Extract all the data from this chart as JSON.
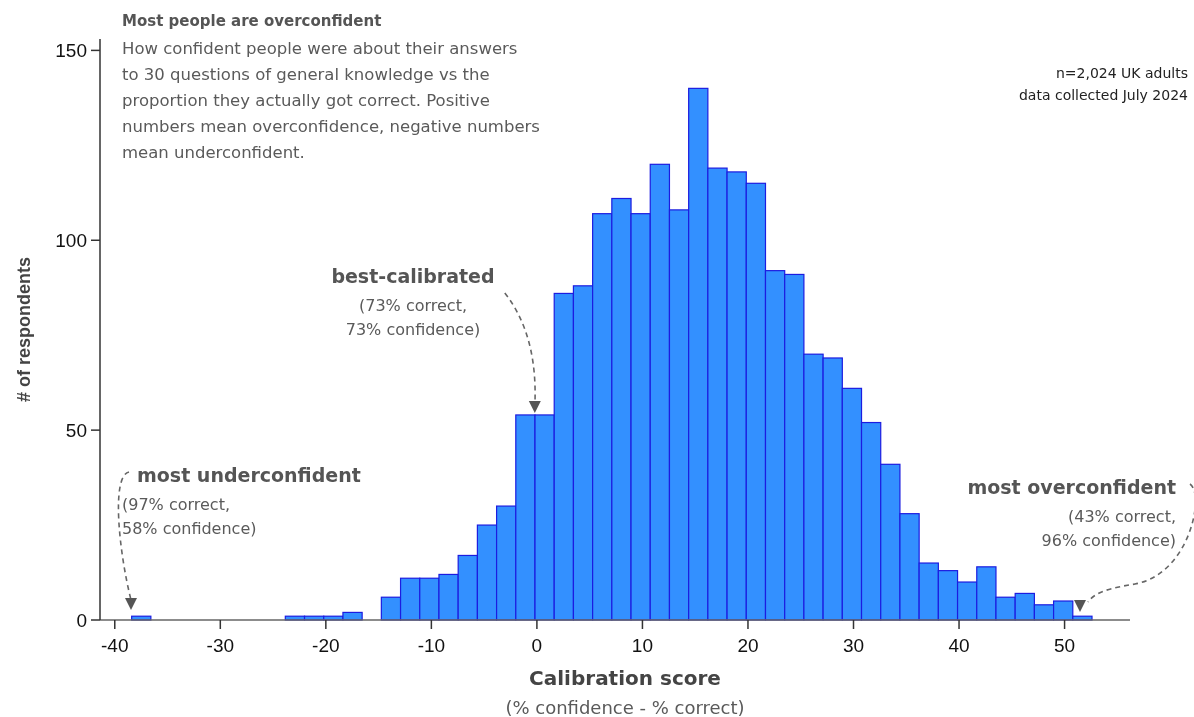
{
  "chart_data": {
    "type": "histogram",
    "title": "Most people are overconfident",
    "subtitle": "How confident people were about their answers to 30 questions of general knowledge vs the proportion they actually got correct. Positive numbers mean overconfidence, negative numbers mean underconfident.",
    "xlabel": "Calibration score\n(% confidence - % correct)",
    "ylabel": "# of respondents",
    "bins": [
      -38.4,
      -36.58,
      -34.76,
      -32.94,
      -31.12,
      -29.3,
      -27.48,
      -25.66,
      -23.84,
      -22.02,
      -20.2,
      -18.38,
      -16.56,
      -14.74,
      -12.92,
      -11.1,
      -9.28,
      -7.46,
      -5.64,
      -3.82,
      -2,
      -0.18,
      1.64,
      3.46,
      5.28,
      7.1,
      8.92,
      10.74,
      12.56,
      14.38,
      16.2,
      18.02,
      19.84,
      21.66,
      23.48,
      25.3,
      27.12,
      28.94,
      30.76,
      32.58,
      34.4,
      36.22,
      38.04,
      39.86,
      41.68,
      43.5,
      45.32,
      47.14,
      48.96,
      50.78,
      52.6
    ],
    "values": [
      1,
      0,
      0,
      0,
      0,
      0,
      0,
      0,
      1,
      1,
      1,
      2,
      0,
      6,
      11,
      11,
      12,
      17,
      25,
      30,
      54,
      54,
      86,
      88,
      107,
      111,
      107,
      120,
      108,
      140,
      119,
      118,
      115,
      92,
      91,
      70,
      69,
      61,
      52,
      41,
      28,
      15,
      13,
      10,
      14,
      6,
      7,
      4,
      5,
      1
    ],
    "color": "#3390ff",
    "xlim": [
      -41.4,
      56.2
    ],
    "xticks": [
      -40,
      -30,
      -20,
      -10,
      0,
      10,
      20,
      30,
      40,
      50
    ],
    "ylim": [
      0,
      153
    ],
    "yticks": [
      0,
      50,
      100,
      150
    ],
    "grid": false,
    "annotations": [
      {
        "text": "best-calibrated\n(73% correct,\n73% confidence)",
        "x": -0.2,
        "y": 54
      },
      "most underconfident\n(97% correct,\n58% confidence)",
      "most overconfident\n(43% correct,\n96% confidence)",
      "n=2,024 UK adults",
      "data collected July 2024"
    ]
  }
}
